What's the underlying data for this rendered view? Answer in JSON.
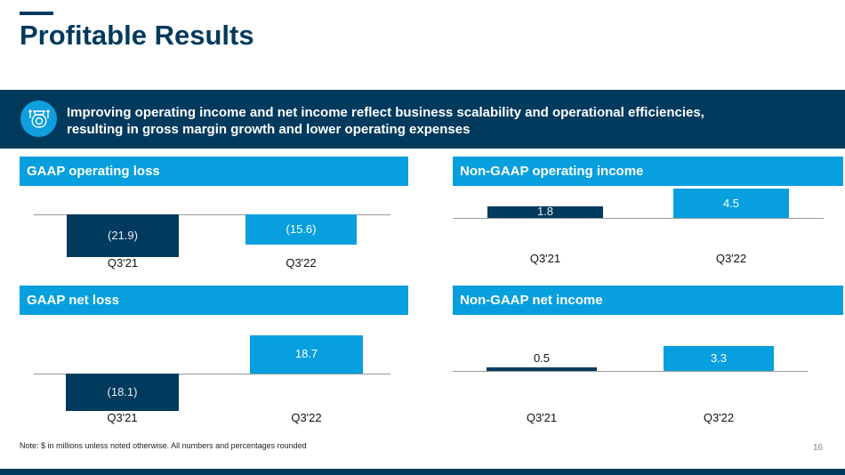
{
  "title": "Profitable Results",
  "banner": {
    "icon": "money-bag-growth-icon",
    "text": "Improving operating income and net income reflect business scalability and operational efficiencies, resulting in gross margin growth and lower operating expenses"
  },
  "colors": {
    "dark": "#003a5d",
    "accent": "#079fde"
  },
  "chart_data": [
    {
      "type": "bar",
      "title": "GAAP operating loss",
      "categories": [
        "Q3'21",
        "Q3'22"
      ],
      "values": [
        -21.9,
        -15.6
      ],
      "labels": [
        "(21.9)",
        "(15.6)"
      ],
      "unit": "$M"
    },
    {
      "type": "bar",
      "title": "Non-GAAP operating income",
      "categories": [
        "Q3'21",
        "Q3'22"
      ],
      "values": [
        1.8,
        4.5
      ],
      "labels": [
        "1.8",
        "4.5"
      ],
      "unit": "$M"
    },
    {
      "type": "bar",
      "title": "GAAP net loss",
      "categories": [
        "Q3'21",
        "Q3'22"
      ],
      "values": [
        -18.1,
        18.7
      ],
      "labels": [
        "(18.1)",
        "18.7"
      ],
      "unit": "$M"
    },
    {
      "type": "bar",
      "title": "Non-GAAP net income",
      "categories": [
        "Q3'21",
        "Q3'22"
      ],
      "values": [
        0.5,
        3.3
      ],
      "labels": [
        "0.5",
        "3.3"
      ],
      "unit": "$M"
    }
  ],
  "note": "Note: $ in millions unless noted otherwise. All numbers and percentages rounded",
  "page_number": "16"
}
